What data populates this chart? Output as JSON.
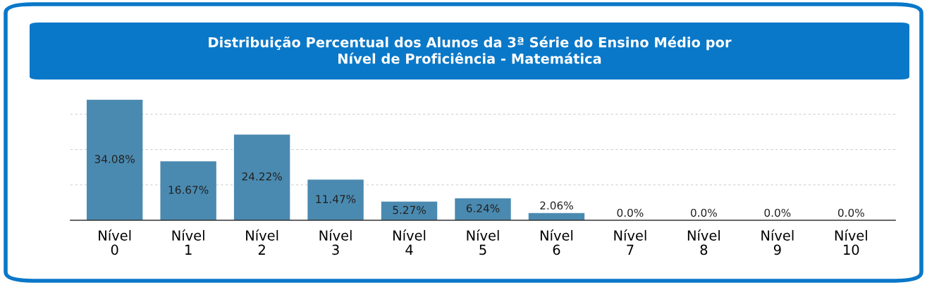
{
  "chart_data": {
    "type": "bar",
    "title": "Distribuição Percentual dos Alunos da 3ª Série do Ensino Médio por\nNível de Proficiência - Matemática",
    "categories": [
      "Nível\n0",
      "Nível\n1",
      "Nível\n2",
      "Nível\n3",
      "Nível\n4",
      "Nível\n5",
      "Nível\n6",
      "Nível\n7",
      "Nível\n8",
      "Nível\n9",
      "Nível\n10"
    ],
    "values": [
      34.08,
      16.67,
      24.22,
      11.47,
      5.27,
      6.24,
      2.06,
      0.0,
      0.0,
      0.0,
      0.0
    ],
    "value_labels": [
      "34.08%",
      "16.67%",
      "24.22%",
      "11.47%",
      "5.27%",
      "6.24%",
      "2.06%",
      "0.0%",
      "0.0%",
      "0.0%",
      "0.0%"
    ],
    "color": "#4a8ab0",
    "yticks": [
      {
        "value": 10,
        "label": null
      },
      {
        "value": 20,
        "label": null
      },
      {
        "value": 30,
        "label": null
      }
    ],
    "grid": "y"
  }
}
